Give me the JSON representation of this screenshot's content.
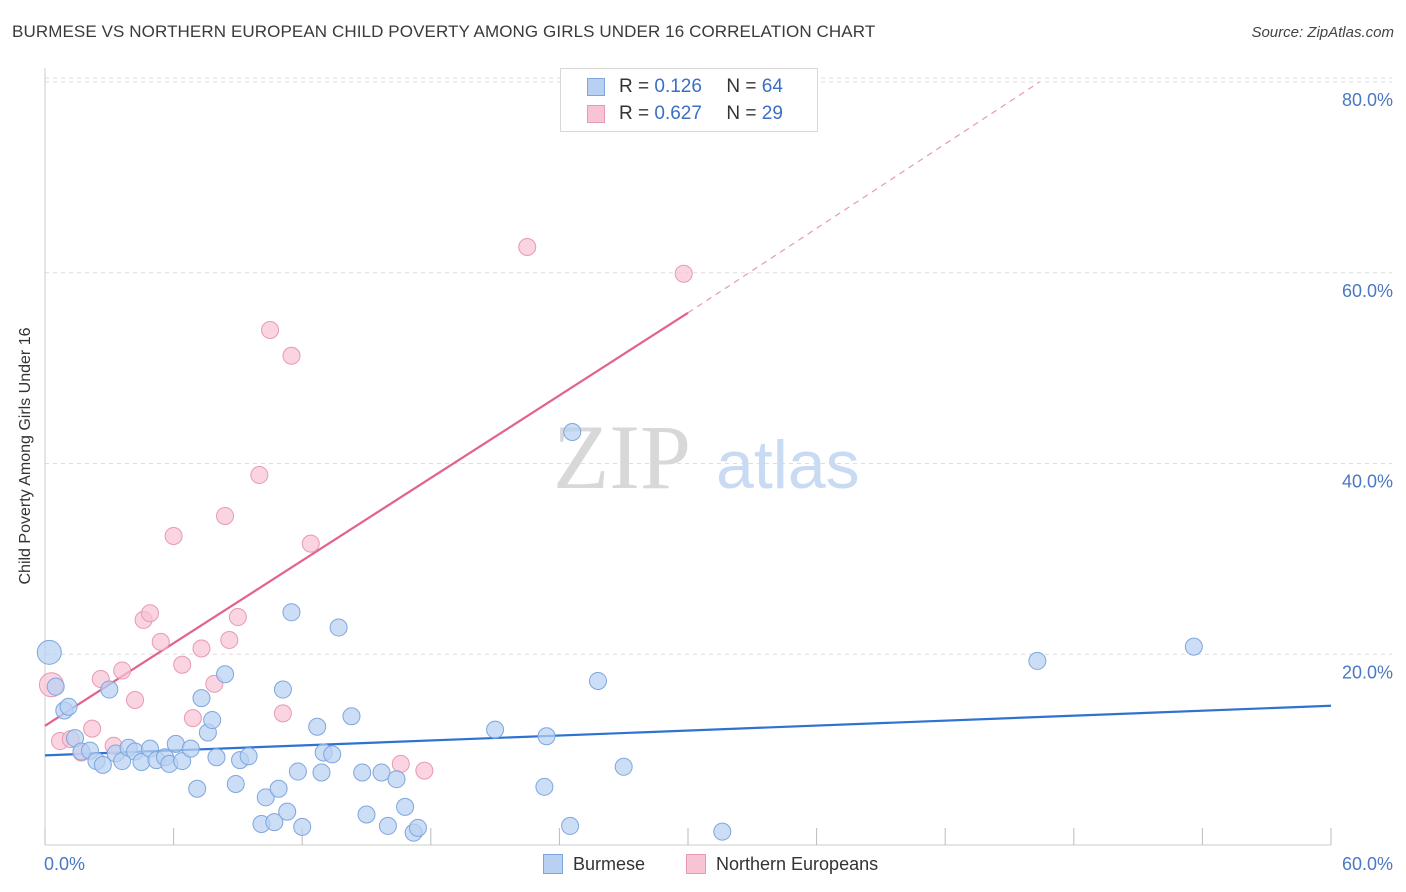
{
  "header": {
    "title": "BURMESE VS NORTHERN EUROPEAN CHILD POVERTY AMONG GIRLS UNDER 16 CORRELATION CHART",
    "source": "Source: ZipAtlas.com"
  },
  "watermark": {
    "zip": "ZIP",
    "atlas": "atlas"
  },
  "legend": {
    "rows": [
      {
        "r_label": "R =",
        "r_value": "0.126",
        "n_label": "N =",
        "n_value": "64"
      },
      {
        "r_label": "R =",
        "r_value": "0.627",
        "n_label": "N =",
        "n_value": "29"
      }
    ],
    "series": [
      "Burmese",
      "Northern Europeans"
    ]
  },
  "colors": {
    "blue_fill": "#b8d1f2",
    "blue_stroke": "#7ea6dd",
    "blue_line": "#2f72d0",
    "pink_fill": "#f8c4d4",
    "pink_stroke": "#e79ab3",
    "pink_line": "#e2628d",
    "tick_label": "#4a78c2",
    "grid": "#dddddd"
  },
  "chart_data": {
    "type": "scatter",
    "title": "BURMESE VS NORTHERN EUROPEAN CHILD POVERTY AMONG GIRLS UNDER 16 CORRELATION CHART",
    "xlabel": "",
    "ylabel": "Child Poverty Among Girls Under 16",
    "xlim": [
      0,
      60
    ],
    "ylim": [
      0,
      80
    ],
    "x_tick_labels": [
      "0.0%",
      "60.0%"
    ],
    "y_ticks": [
      20,
      40,
      60,
      80
    ],
    "y_tick_labels": [
      "20.0%",
      "40.0%",
      "60.0%",
      "80.0%"
    ],
    "grid": true,
    "legend_position": "top-center",
    "series": [
      {
        "name": "Burmese",
        "r": 0.126,
        "n": 64,
        "trend": {
          "x": [
            0,
            60
          ],
          "y": [
            9.4,
            14.6
          ],
          "style": "solid"
        },
        "points": [
          [
            0.2,
            20.2
          ],
          [
            0.5,
            16.6
          ],
          [
            0.9,
            14.1
          ],
          [
            1.1,
            14.5
          ],
          [
            1.4,
            11.2
          ],
          [
            1.7,
            9.8
          ],
          [
            2.1,
            9.9
          ],
          [
            2.4,
            8.8
          ],
          [
            2.7,
            8.4
          ],
          [
            3.0,
            16.3
          ],
          [
            3.3,
            9.6
          ],
          [
            3.6,
            8.8
          ],
          [
            3.9,
            10.2
          ],
          [
            4.2,
            9.8
          ],
          [
            4.5,
            8.7
          ],
          [
            4.9,
            10.1
          ],
          [
            5.2,
            8.9
          ],
          [
            5.6,
            9.2
          ],
          [
            5.8,
            8.5
          ],
          [
            6.1,
            10.6
          ],
          [
            6.4,
            8.8
          ],
          [
            6.8,
            10.1
          ],
          [
            7.1,
            5.9
          ],
          [
            7.3,
            15.4
          ],
          [
            7.6,
            11.8
          ],
          [
            7.8,
            13.1
          ],
          [
            8.0,
            9.2
          ],
          [
            8.4,
            17.9
          ],
          [
            8.9,
            6.4
          ],
          [
            9.1,
            8.9
          ],
          [
            9.5,
            9.3
          ],
          [
            10.1,
            2.2
          ],
          [
            10.3,
            5.0
          ],
          [
            10.7,
            2.4
          ],
          [
            10.9,
            5.9
          ],
          [
            11.1,
            16.3
          ],
          [
            11.3,
            3.5
          ],
          [
            11.5,
            24.4
          ],
          [
            11.8,
            7.7
          ],
          [
            12.0,
            1.9
          ],
          [
            12.7,
            12.4
          ],
          [
            12.9,
            7.6
          ],
          [
            13.0,
            9.7
          ],
          [
            13.4,
            9.5
          ],
          [
            13.7,
            22.8
          ],
          [
            14.3,
            13.5
          ],
          [
            14.8,
            7.6
          ],
          [
            15.0,
            3.2
          ],
          [
            15.7,
            7.6
          ],
          [
            16.0,
            2.0
          ],
          [
            16.4,
            6.9
          ],
          [
            16.8,
            4.0
          ],
          [
            17.2,
            1.3
          ],
          [
            17.4,
            1.8
          ],
          [
            21.0,
            12.1
          ],
          [
            23.4,
            11.4
          ],
          [
            23.3,
            6.1
          ],
          [
            24.5,
            2.0
          ],
          [
            24.6,
            43.3
          ],
          [
            25.8,
            17.2
          ],
          [
            27.0,
            8.2
          ],
          [
            31.6,
            1.4
          ],
          [
            46.3,
            19.3
          ],
          [
            53.6,
            20.8
          ]
        ]
      },
      {
        "name": "Northern Europeans",
        "r": 0.627,
        "n": 29,
        "trend": {
          "x": [
            0,
            30
          ],
          "y": [
            12.5,
            55.8
          ],
          "x_dashed_end": 46.4,
          "y_dashed_end": 80.0,
          "style": "solid then dashed"
        },
        "points": [
          [
            0.3,
            16.8
          ],
          [
            0.7,
            10.9
          ],
          [
            1.2,
            11.1
          ],
          [
            1.7,
            9.7
          ],
          [
            2.2,
            12.2
          ],
          [
            2.6,
            17.4
          ],
          [
            3.2,
            10.4
          ],
          [
            3.6,
            18.3
          ],
          [
            4.2,
            15.2
          ],
          [
            4.6,
            23.6
          ],
          [
            4.9,
            24.3
          ],
          [
            5.4,
            21.3
          ],
          [
            6.0,
            32.4
          ],
          [
            6.4,
            18.9
          ],
          [
            6.9,
            13.3
          ],
          [
            7.3,
            20.6
          ],
          [
            7.9,
            16.9
          ],
          [
            8.4,
            34.5
          ],
          [
            8.6,
            21.5
          ],
          [
            9.0,
            23.9
          ],
          [
            10.0,
            38.8
          ],
          [
            10.5,
            54.0
          ],
          [
            11.1,
            13.8
          ],
          [
            11.5,
            51.3
          ],
          [
            12.4,
            31.6
          ],
          [
            16.6,
            8.5
          ],
          [
            17.7,
            7.8
          ],
          [
            22.5,
            62.7
          ],
          [
            29.8,
            59.9
          ]
        ]
      }
    ]
  }
}
